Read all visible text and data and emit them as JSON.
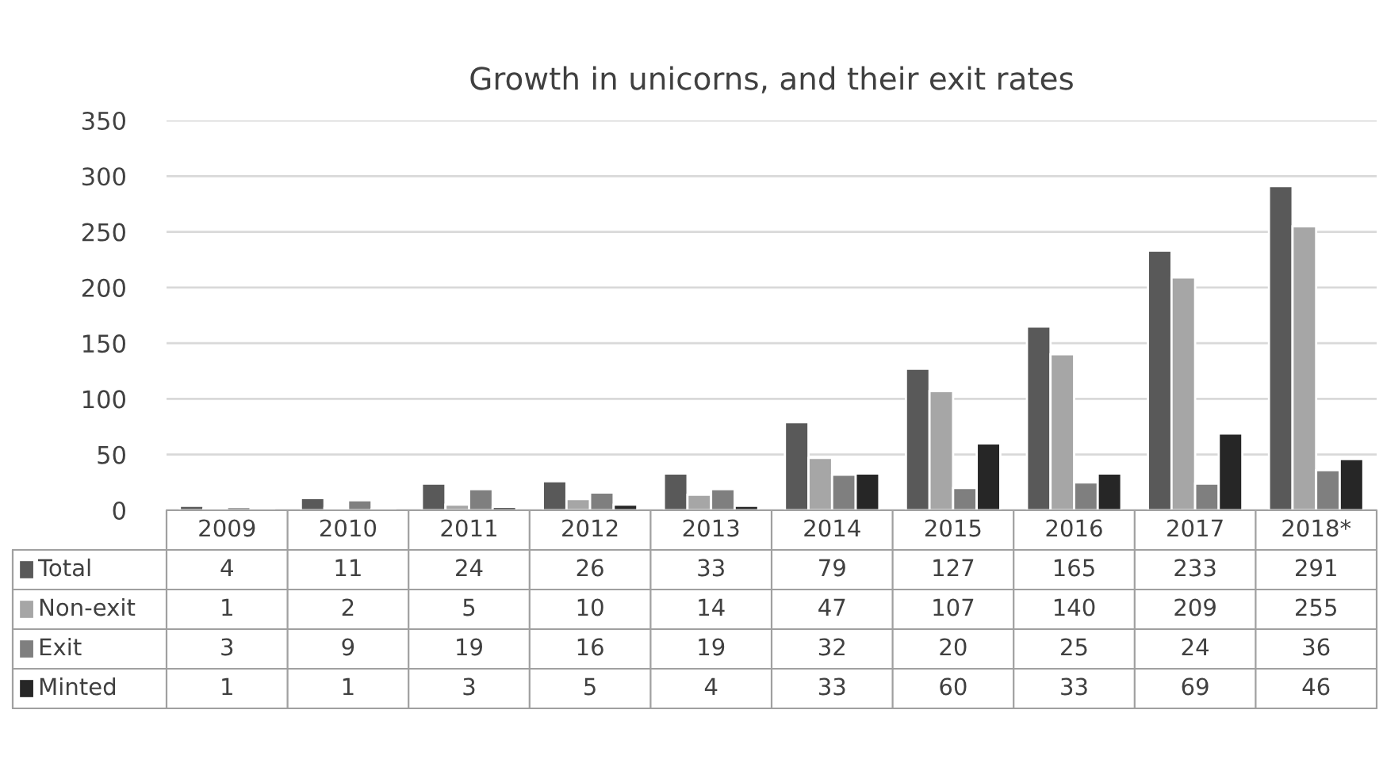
{
  "chart_data": {
    "type": "bar",
    "title": "Growth in unicorns, and their exit rates",
    "categories": [
      "2009",
      "2010",
      "2011",
      "2012",
      "2013",
      "2014",
      "2015",
      "2016",
      "2017",
      "2018*"
    ],
    "series": [
      {
        "name": "Total",
        "color": "#595959",
        "values": [
          4,
          11,
          24,
          26,
          33,
          79,
          127,
          165,
          233,
          291
        ]
      },
      {
        "name": "Non-exit",
        "color": "#a6a6a6",
        "values": [
          1,
          2,
          5,
          10,
          14,
          47,
          107,
          140,
          209,
          255
        ]
      },
      {
        "name": "Exit",
        "color": "#7f7f7f",
        "values": [
          3,
          9,
          19,
          16,
          19,
          32,
          20,
          25,
          24,
          36
        ]
      },
      {
        "name": "Minted",
        "color": "#262626",
        "values": [
          1,
          1,
          3,
          5,
          4,
          33,
          60,
          33,
          69,
          46
        ]
      }
    ],
    "ylim": [
      0,
      350
    ],
    "yticks": [
      0,
      50,
      100,
      150,
      200,
      250,
      300,
      350
    ],
    "grid": "y",
    "legend": "bottom",
    "data_labels": true
  }
}
